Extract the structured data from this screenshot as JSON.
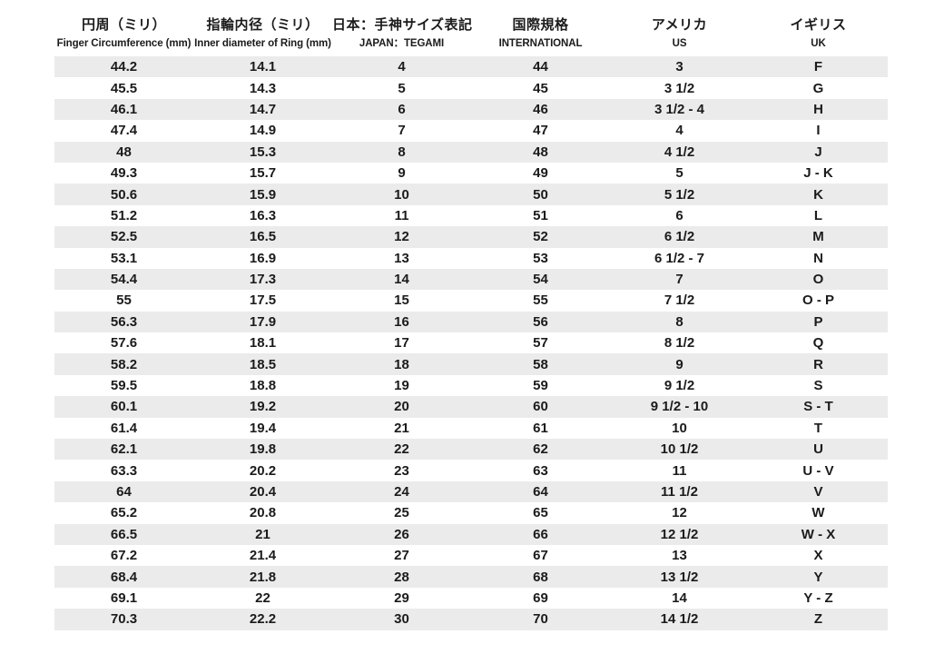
{
  "colors": {
    "background": "#ffffff",
    "stripe": "#ebebeb",
    "text": "#1b1b1b"
  },
  "chart_data": {
    "type": "table",
    "columns": [
      {
        "jp": "円周（ミリ）",
        "en": "Finger Circumference (mm)"
      },
      {
        "jp": "指輪内径（ミリ）",
        "en": "Inner diameter of Ring (mm)"
      },
      {
        "jp": "日本：手神サイズ表記",
        "en": "JAPAN：TEGAMI"
      },
      {
        "jp": "国際規格",
        "en": "INTERNATIONAL"
      },
      {
        "jp": "アメリカ",
        "en": "US"
      },
      {
        "jp": "イギリス",
        "en": "UK"
      }
    ],
    "rows": [
      [
        "44.2",
        "14.1",
        "4",
        "44",
        "3",
        "F"
      ],
      [
        "45.5",
        "14.3",
        "5",
        "45",
        "3 1/2",
        "G"
      ],
      [
        "46.1",
        "14.7",
        "6",
        "46",
        "3 1/2 - 4",
        "H"
      ],
      [
        "47.4",
        "14.9",
        "7",
        "47",
        "4",
        "I"
      ],
      [
        "48",
        "15.3",
        "8",
        "48",
        "4 1/2",
        "J"
      ],
      [
        "49.3",
        "15.7",
        "9",
        "49",
        "5",
        "J - K"
      ],
      [
        "50.6",
        "15.9",
        "10",
        "50",
        "5 1/2",
        "K"
      ],
      [
        "51.2",
        "16.3",
        "11",
        "51",
        "6",
        "L"
      ],
      [
        "52.5",
        "16.5",
        "12",
        "52",
        "6 1/2",
        "M"
      ],
      [
        "53.1",
        "16.9",
        "13",
        "53",
        "6 1/2 - 7",
        "N"
      ],
      [
        "54.4",
        "17.3",
        "14",
        "54",
        "7",
        "O"
      ],
      [
        "55",
        "17.5",
        "15",
        "55",
        "7 1/2",
        "O - P"
      ],
      [
        "56.3",
        "17.9",
        "16",
        "56",
        "8",
        "P"
      ],
      [
        "57.6",
        "18.1",
        "17",
        "57",
        "8 1/2",
        "Q"
      ],
      [
        "58.2",
        "18.5",
        "18",
        "58",
        "9",
        "R"
      ],
      [
        "59.5",
        "18.8",
        "19",
        "59",
        "9 1/2",
        "S"
      ],
      [
        "60.1",
        "19.2",
        "20",
        "60",
        "9 1/2 - 10",
        "S - T"
      ],
      [
        "61.4",
        "19.4",
        "21",
        "61",
        "10",
        "T"
      ],
      [
        "62.1",
        "19.8",
        "22",
        "62",
        "10 1/2",
        "U"
      ],
      [
        "63.3",
        "20.2",
        "23",
        "63",
        "11",
        "U - V"
      ],
      [
        "64",
        "20.4",
        "24",
        "64",
        "11 1/2",
        "V"
      ],
      [
        "65.2",
        "20.8",
        "25",
        "65",
        "12",
        "W"
      ],
      [
        "66.5",
        "21",
        "26",
        "66",
        "12 1/2",
        "W - X"
      ],
      [
        "67.2",
        "21.4",
        "27",
        "67",
        "13",
        "X"
      ],
      [
        "68.4",
        "21.8",
        "28",
        "68",
        "13 1/2",
        "Y"
      ],
      [
        "69.1",
        "22",
        "29",
        "69",
        "14",
        "Y - Z"
      ],
      [
        "70.3",
        "22.2",
        "30",
        "70",
        "14 1/2",
        "Z"
      ]
    ]
  }
}
